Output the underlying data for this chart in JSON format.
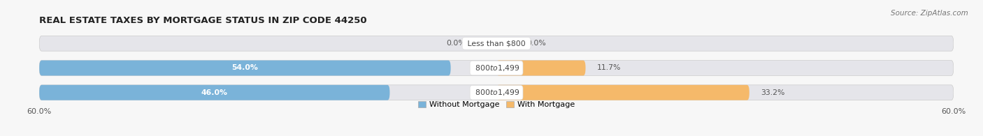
{
  "title": "REAL ESTATE TAXES BY MORTGAGE STATUS IN ZIP CODE 44250",
  "source": "Source: ZipAtlas.com",
  "rows": [
    {
      "label": "Less than $800",
      "without_mortgage": 0.0,
      "with_mortgage": 0.0
    },
    {
      "label": "$800 to $1,499",
      "without_mortgage": 54.0,
      "with_mortgage": 11.7
    },
    {
      "label": "$800 to $1,499",
      "without_mortgage": 46.0,
      "with_mortgage": 33.2
    }
  ],
  "xlim": 60.0,
  "color_without": "#7ab3d9",
  "color_with": "#f5b96a",
  "color_bar_bg": "#e5e5ea",
  "bg_color": "#f7f7f7",
  "bar_height": 0.62,
  "title_fontsize": 9.5,
  "source_fontsize": 7.5,
  "label_fontsize": 7.8,
  "tick_fontsize": 8,
  "legend_fontsize": 8,
  "value_label_color_inside": "#ffffff",
  "value_label_color_outside": "#555555",
  "center_label_color": "#444444",
  "center_label_bg": "#ffffff",
  "rounding_size": 0.3
}
